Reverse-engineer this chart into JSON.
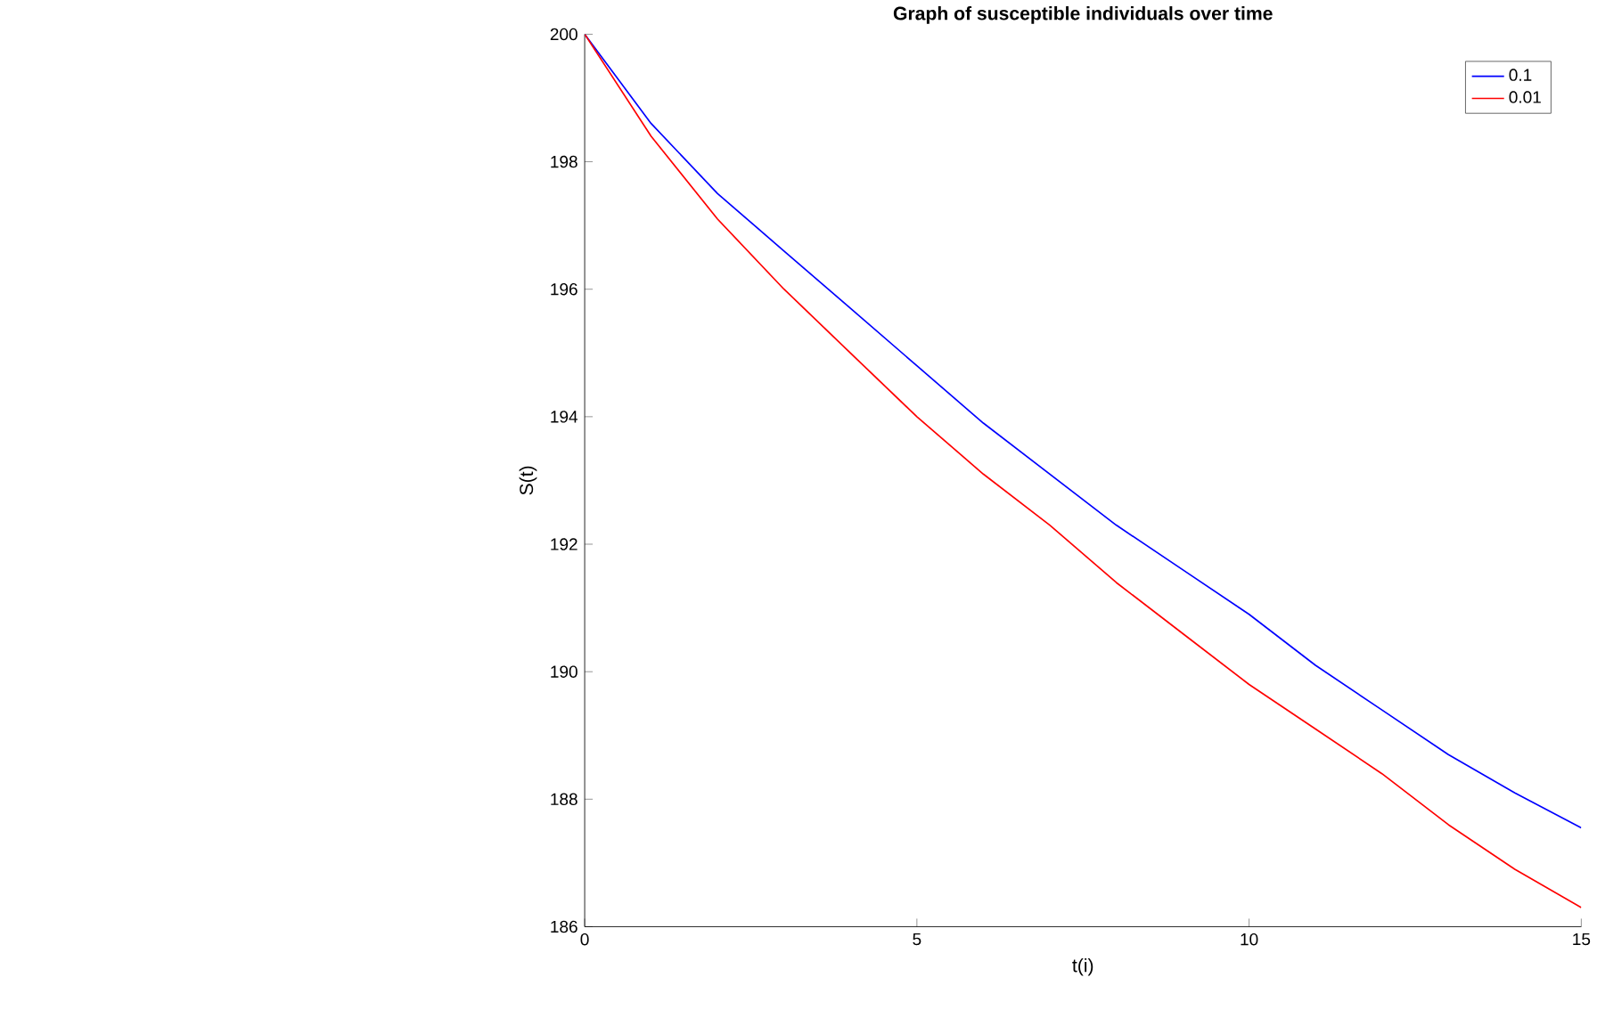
{
  "chart_data": {
    "type": "line",
    "title": "Graph of susceptible individuals over time",
    "xlabel": "t(i)",
    "ylabel": "S(t)",
    "x": [
      0,
      1,
      2,
      3,
      4,
      5,
      6,
      7,
      8,
      9,
      10,
      11,
      12,
      13,
      14,
      15
    ],
    "series": [
      {
        "name": "0.1",
        "color": "#0000ff",
        "values": [
          200,
          198.6,
          197.5,
          196.6,
          195.7,
          194.8,
          193.9,
          193.1,
          192.3,
          191.6,
          190.9,
          190.1,
          189.4,
          188.7,
          188.1,
          187.55
        ]
      },
      {
        "name": "0.01",
        "color": "#ff0000",
        "values": [
          200,
          198.4,
          197.1,
          196.0,
          195.0,
          194.0,
          193.1,
          192.3,
          191.4,
          190.6,
          189.8,
          189.1,
          188.4,
          187.6,
          186.9,
          186.3
        ]
      }
    ],
    "xlim": [
      0,
      15
    ],
    "ylim": [
      186,
      200
    ],
    "xticks": [
      0,
      5,
      10,
      15
    ],
    "yticks": [
      186,
      188,
      190,
      192,
      194,
      196,
      198,
      200
    ],
    "legend": "top right",
    "grid": false,
    "marker": "none",
    "line_style": "solid"
  }
}
